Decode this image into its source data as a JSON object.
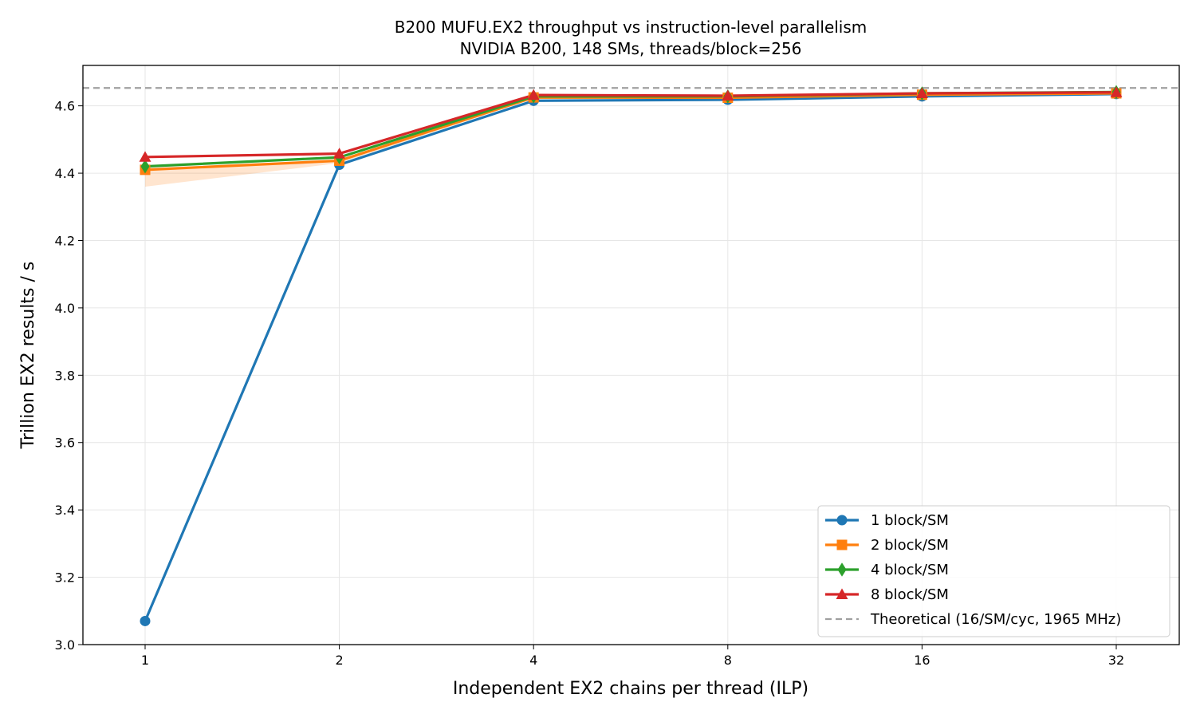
{
  "chart_data": {
    "type": "line",
    "title": "B200 MUFU.EX2 throughput vs instruction-level parallelism",
    "subtitle": "NVIDIA B200, 148 SMs, threads/block=256",
    "xlabel": "Independent EX2 chains per thread (ILP)",
    "ylabel": "Trillion EX2 results / s",
    "x_scale": "log2",
    "x": [
      1,
      2,
      4,
      8,
      16,
      32
    ],
    "x_tick_labels": [
      "1",
      "2",
      "4",
      "8",
      "16",
      "32"
    ],
    "ylim": [
      3.0,
      4.72
    ],
    "y_ticks": [
      3.0,
      3.2,
      3.4,
      3.6,
      3.8,
      4.0,
      4.2,
      4.4,
      4.6
    ],
    "y_tick_labels": [
      "3.0",
      "3.2",
      "3.4",
      "3.6",
      "3.8",
      "4.0",
      "4.2",
      "4.4",
      "4.6"
    ],
    "grid": true,
    "legend_position": "lower right",
    "series": [
      {
        "name": "1 block/SM",
        "color": "#1f77b4",
        "marker": "circle",
        "values": [
          3.07,
          4.425,
          4.615,
          4.618,
          4.628,
          4.635
        ]
      },
      {
        "name": "2 block/SM",
        "color": "#ff7f0e",
        "marker": "square",
        "values": [
          4.41,
          4.437,
          4.625,
          4.624,
          4.633,
          4.637
        ],
        "band": {
          "lower": [
            4.36,
            4.43,
            4.62,
            4.62,
            4.63,
            4.634
          ],
          "upper": [
            4.415,
            4.44,
            4.628,
            4.627,
            4.636,
            4.64
          ]
        }
      },
      {
        "name": "4 block/SM",
        "color": "#2ca02c",
        "marker": "diamond",
        "values": [
          4.42,
          4.447,
          4.628,
          4.628,
          4.637,
          4.641
        ]
      },
      {
        "name": "8 block/SM",
        "color": "#d62728",
        "marker": "triangle",
        "values": [
          4.448,
          4.458,
          4.632,
          4.63,
          4.637,
          4.64
        ]
      }
    ],
    "reference_lines": [
      {
        "name": "Theoretical (16/SM/cyc, 1965 MHz)",
        "color": "#a0a0a0",
        "style": "dashed",
        "y": 4.653
      }
    ]
  }
}
